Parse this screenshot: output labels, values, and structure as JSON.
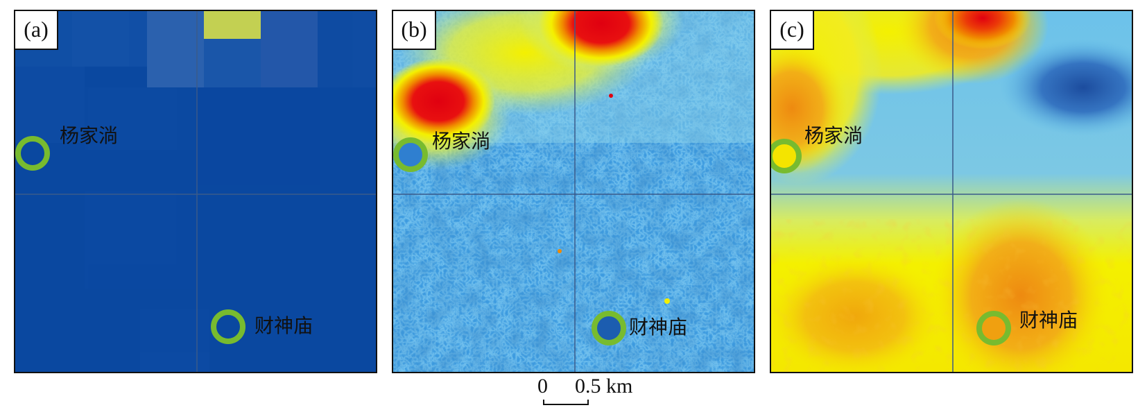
{
  "panels": [
    {
      "label": "(a)",
      "place_north": "杨家淌",
      "place_south": "财神庙"
    },
    {
      "label": "(b)",
      "place_north": "杨家淌",
      "place_south": "财神庙"
    },
    {
      "label": "(c)",
      "place_north": "杨家淌",
      "place_south": "财神庙"
    }
  ],
  "scale": {
    "start": "0",
    "end": "0.5 km"
  },
  "colors": {
    "marker": "#78bb2f",
    "low": "#0a48a0",
    "mid_low": "#4fb6e8",
    "mid": "#f4f000",
    "mid_high": "#f08a00",
    "high": "#e00010"
  }
}
